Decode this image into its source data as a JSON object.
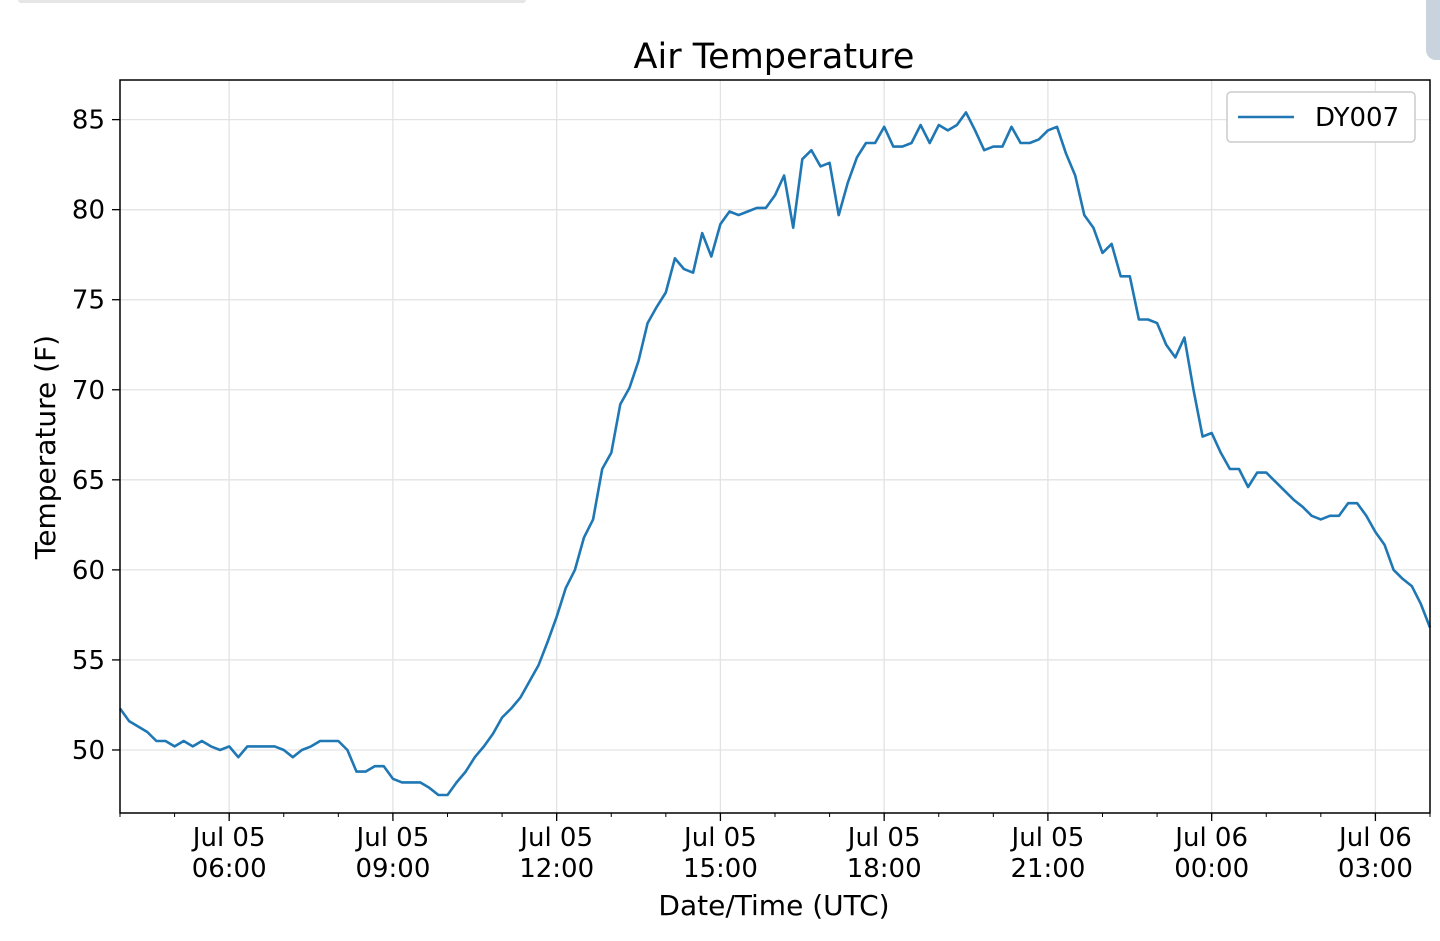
{
  "chart_data": {
    "type": "line",
    "title": "Air Temperature",
    "xlabel": "Date/Time (UTC)",
    "ylabel": "Temperature (F)",
    "x_range": [
      "2019-07-05T04:00",
      "2019-07-06T04:00"
    ],
    "ylim": [
      46.5,
      87.2
    ],
    "grid": true,
    "legend_position": "top-right",
    "y_ticks": [
      50,
      55,
      60,
      65,
      70,
      75,
      80,
      85
    ],
    "x_ticks": [
      {
        "at": "2019-07-05T06:00",
        "line1": "Jul 05",
        "line2": "06:00"
      },
      {
        "at": "2019-07-05T09:00",
        "line1": "Jul 05",
        "line2": "09:00"
      },
      {
        "at": "2019-07-05T12:00",
        "line1": "Jul 05",
        "line2": "12:00"
      },
      {
        "at": "2019-07-05T15:00",
        "line1": "Jul 05",
        "line2": "15:00"
      },
      {
        "at": "2019-07-05T18:00",
        "line1": "Jul 05",
        "line2": "18:00"
      },
      {
        "at": "2019-07-05T21:00",
        "line1": "Jul 05",
        "line2": "21:00"
      },
      {
        "at": "2019-07-06T00:00",
        "line1": "Jul 06",
        "line2": "00:00"
      },
      {
        "at": "2019-07-06T03:00",
        "line1": "Jul 06",
        "line2": "03:00"
      }
    ],
    "series": [
      {
        "name": "DY007",
        "color": "#1f77b4",
        "points": [
          [
            "2019-07-05T04:00",
            52.3
          ],
          [
            "2019-07-05T04:10",
            51.6
          ],
          [
            "2019-07-05T04:30",
            51.0
          ],
          [
            "2019-07-05T04:40",
            50.5
          ],
          [
            "2019-07-05T04:50",
            50.5
          ],
          [
            "2019-07-05T05:00",
            50.2
          ],
          [
            "2019-07-05T05:10",
            50.5
          ],
          [
            "2019-07-05T05:20",
            50.2
          ],
          [
            "2019-07-05T05:30",
            50.5
          ],
          [
            "2019-07-05T05:40",
            50.2
          ],
          [
            "2019-07-05T05:50",
            50.0
          ],
          [
            "2019-07-05T06:00",
            50.2
          ],
          [
            "2019-07-05T06:10",
            49.6
          ],
          [
            "2019-07-05T06:20",
            50.2
          ],
          [
            "2019-07-05T06:50",
            50.2
          ],
          [
            "2019-07-05T07:00",
            50.0
          ],
          [
            "2019-07-05T07:10",
            49.6
          ],
          [
            "2019-07-05T07:20",
            50.0
          ],
          [
            "2019-07-05T07:30",
            50.2
          ],
          [
            "2019-07-05T07:40",
            50.5
          ],
          [
            "2019-07-05T08:00",
            50.5
          ],
          [
            "2019-07-05T08:10",
            50.0
          ],
          [
            "2019-07-05T08:20",
            48.8
          ],
          [
            "2019-07-05T08:30",
            48.8
          ],
          [
            "2019-07-05T08:40",
            49.1
          ],
          [
            "2019-07-05T08:50",
            49.1
          ],
          [
            "2019-07-05T09:00",
            48.4
          ],
          [
            "2019-07-05T09:10",
            48.2
          ],
          [
            "2019-07-05T09:30",
            48.2
          ],
          [
            "2019-07-05T09:40",
            47.9
          ],
          [
            "2019-07-05T09:50",
            47.5
          ],
          [
            "2019-07-05T10:00",
            47.5
          ],
          [
            "2019-07-05T10:10",
            48.2
          ],
          [
            "2019-07-05T10:20",
            48.8
          ],
          [
            "2019-07-05T10:30",
            49.6
          ],
          [
            "2019-07-05T10:40",
            50.2
          ],
          [
            "2019-07-05T10:50",
            50.9
          ],
          [
            "2019-07-05T11:00",
            51.8
          ],
          [
            "2019-07-05T11:10",
            52.3
          ],
          [
            "2019-07-05T11:20",
            52.9
          ],
          [
            "2019-07-05T11:30",
            53.8
          ],
          [
            "2019-07-05T11:40",
            54.7
          ],
          [
            "2019-07-05T11:50",
            56.0
          ],
          [
            "2019-07-05T12:00",
            57.4
          ],
          [
            "2019-07-05T12:10",
            59.0
          ],
          [
            "2019-07-05T12:20",
            60.0
          ],
          [
            "2019-07-05T12:30",
            61.8
          ],
          [
            "2019-07-05T12:40",
            62.8
          ],
          [
            "2019-07-05T12:50",
            65.6
          ],
          [
            "2019-07-05T13:00",
            66.5
          ],
          [
            "2019-07-05T13:10",
            69.2
          ],
          [
            "2019-07-05T13:20",
            70.1
          ],
          [
            "2019-07-05T13:30",
            71.6
          ],
          [
            "2019-07-05T13:40",
            73.7
          ],
          [
            "2019-07-05T13:50",
            74.6
          ],
          [
            "2019-07-05T14:00",
            75.4
          ],
          [
            "2019-07-05T14:10",
            77.3
          ],
          [
            "2019-07-05T14:20",
            76.7
          ],
          [
            "2019-07-05T14:30",
            76.5
          ],
          [
            "2019-07-05T14:40",
            78.7
          ],
          [
            "2019-07-05T14:50",
            77.4
          ],
          [
            "2019-07-05T15:00",
            79.2
          ],
          [
            "2019-07-05T15:10",
            79.9
          ],
          [
            "2019-07-05T15:20",
            79.7
          ],
          [
            "2019-07-05T15:30",
            79.9
          ],
          [
            "2019-07-05T15:40",
            80.1
          ],
          [
            "2019-07-05T15:50",
            80.1
          ],
          [
            "2019-07-05T16:00",
            80.8
          ],
          [
            "2019-07-05T16:10",
            81.9
          ],
          [
            "2019-07-05T16:20",
            79.0
          ],
          [
            "2019-07-05T16:30",
            82.8
          ],
          [
            "2019-07-05T16:40",
            83.3
          ],
          [
            "2019-07-05T16:50",
            82.4
          ],
          [
            "2019-07-05T17:00",
            82.6
          ],
          [
            "2019-07-05T17:10",
            79.7
          ],
          [
            "2019-07-05T17:20",
            81.5
          ],
          [
            "2019-07-05T17:30",
            82.9
          ],
          [
            "2019-07-05T17:40",
            83.7
          ],
          [
            "2019-07-05T17:50",
            83.7
          ],
          [
            "2019-07-05T18:00",
            84.6
          ],
          [
            "2019-07-05T18:10",
            83.5
          ],
          [
            "2019-07-05T18:20",
            83.5
          ],
          [
            "2019-07-05T18:30",
            83.7
          ],
          [
            "2019-07-05T18:40",
            84.7
          ],
          [
            "2019-07-05T18:50",
            83.7
          ],
          [
            "2019-07-05T19:00",
            84.7
          ],
          [
            "2019-07-05T19:10",
            84.4
          ],
          [
            "2019-07-05T19:20",
            84.7
          ],
          [
            "2019-07-05T19:30",
            85.4
          ],
          [
            "2019-07-05T19:40",
            84.4
          ],
          [
            "2019-07-05T19:50",
            83.3
          ],
          [
            "2019-07-05T20:00",
            83.5
          ],
          [
            "2019-07-05T20:10",
            83.5
          ],
          [
            "2019-07-05T20:20",
            84.6
          ],
          [
            "2019-07-05T20:30",
            83.7
          ],
          [
            "2019-07-05T20:40",
            83.7
          ],
          [
            "2019-07-05T20:50",
            83.9
          ],
          [
            "2019-07-05T21:00",
            84.4
          ],
          [
            "2019-07-05T21:10",
            84.6
          ],
          [
            "2019-07-05T21:20",
            83.1
          ],
          [
            "2019-07-05T21:30",
            81.9
          ],
          [
            "2019-07-05T21:40",
            79.7
          ],
          [
            "2019-07-05T21:50",
            79.0
          ],
          [
            "2019-07-05T22:00",
            77.6
          ],
          [
            "2019-07-05T22:10",
            78.1
          ],
          [
            "2019-07-05T22:20",
            76.3
          ],
          [
            "2019-07-05T22:30",
            76.3
          ],
          [
            "2019-07-05T22:40",
            73.9
          ],
          [
            "2019-07-05T22:50",
            73.9
          ],
          [
            "2019-07-05T23:00",
            73.7
          ],
          [
            "2019-07-05T23:10",
            72.5
          ],
          [
            "2019-07-05T23:20",
            71.8
          ],
          [
            "2019-07-05T23:30",
            72.9
          ],
          [
            "2019-07-05T23:40",
            70.0
          ],
          [
            "2019-07-05T23:50",
            67.4
          ],
          [
            "2019-07-06T00:00",
            67.6
          ],
          [
            "2019-07-06T00:10",
            66.5
          ],
          [
            "2019-07-06T00:20",
            65.6
          ],
          [
            "2019-07-06T00:30",
            65.6
          ],
          [
            "2019-07-06T00:40",
            64.6
          ],
          [
            "2019-07-06T00:50",
            65.4
          ],
          [
            "2019-07-06T01:00",
            65.4
          ],
          [
            "2019-07-06T01:10",
            64.9
          ],
          [
            "2019-07-06T01:20",
            64.4
          ],
          [
            "2019-07-06T01:30",
            63.9
          ],
          [
            "2019-07-06T01:40",
            63.5
          ],
          [
            "2019-07-06T01:50",
            63.0
          ],
          [
            "2019-07-06T02:00",
            62.8
          ],
          [
            "2019-07-06T02:10",
            63.0
          ],
          [
            "2019-07-06T02:20",
            63.0
          ],
          [
            "2019-07-06T02:30",
            63.7
          ],
          [
            "2019-07-06T02:40",
            63.7
          ],
          [
            "2019-07-06T02:50",
            63.0
          ],
          [
            "2019-07-06T03:00",
            62.1
          ],
          [
            "2019-07-06T03:10",
            61.4
          ],
          [
            "2019-07-06T03:20",
            60.0
          ],
          [
            "2019-07-06T03:30",
            59.5
          ],
          [
            "2019-07-06T03:40",
            59.1
          ],
          [
            "2019-07-06T03:50",
            58.1
          ],
          [
            "2019-07-06T04:00",
            56.8
          ]
        ]
      }
    ]
  }
}
